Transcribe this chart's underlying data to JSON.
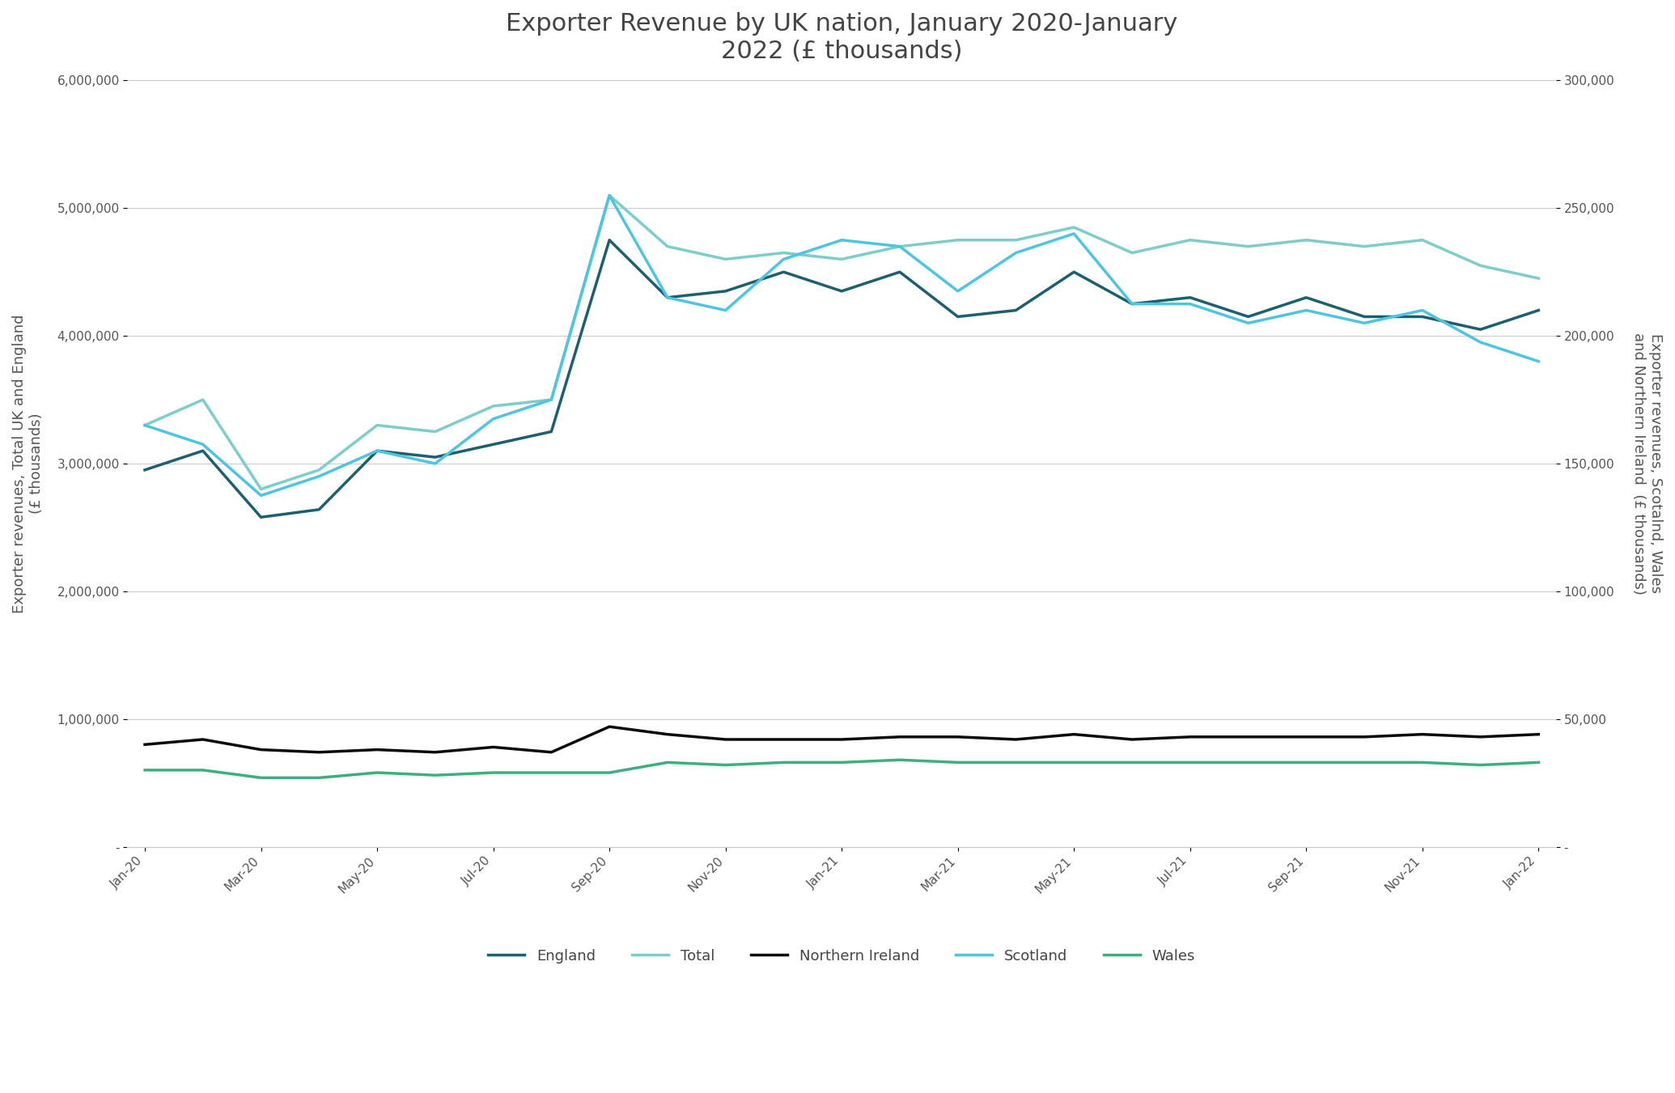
{
  "title": "Exporter Revenue by UK nation, January 2020-January\n2022 (£ thousands)",
  "x_labels": [
    "Jan-20",
    "Mar-20",
    "May-20",
    "Jul-20",
    "Sep-20",
    "Nov-20",
    "Jan-21",
    "Mar-21",
    "May-21",
    "Jul-21",
    "Sep-21",
    "Nov-21",
    "Jan-22"
  ],
  "england": [
    2950000,
    3100000,
    2580000,
    2640000,
    3100000,
    3050000,
    3150000,
    3250000,
    4750000,
    4300000,
    4350000,
    4500000,
    4350000,
    4500000,
    4150000,
    4200000,
    4500000,
    4250000,
    4300000,
    4150000,
    4300000,
    4150000,
    4150000,
    4050000,
    4200000
  ],
  "total": [
    3300000,
    3500000,
    2800000,
    2950000,
    3300000,
    3250000,
    3450000,
    3500000,
    5100000,
    4700000,
    4600000,
    4650000,
    4600000,
    4700000,
    4750000,
    4750000,
    4850000,
    4650000,
    4750000,
    4700000,
    4750000,
    4700000,
    4750000,
    4550000,
    4450000
  ],
  "scotland": [
    3300000,
    3150000,
    2750000,
    2900000,
    3100000,
    3000000,
    3350000,
    3500000,
    5100000,
    4300000,
    4200000,
    4600000,
    4750000,
    4700000,
    4350000,
    4650000,
    4800000,
    4250000,
    4250000,
    4100000,
    4200000,
    4100000,
    4200000,
    3950000,
    3800000
  ],
  "northern_ireland": [
    40000,
    42000,
    38000,
    37000,
    38000,
    37000,
    39000,
    37000,
    47000,
    44000,
    42000,
    42000,
    42000,
    43000,
    43000,
    42000,
    44000,
    42000,
    43000,
    43000,
    43000,
    43000,
    44000,
    43000,
    44000
  ],
  "wales": [
    30000,
    30000,
    27000,
    27000,
    29000,
    28000,
    29000,
    29000,
    29000,
    33000,
    32000,
    33000,
    33000,
    34000,
    33000,
    33000,
    33000,
    33000,
    33000,
    33000,
    33000,
    33000,
    33000,
    32000,
    33000
  ],
  "england_color": "#1c5f6e",
  "total_color": "#7dcdc8",
  "northern_ireland_color": "#0a0a0a",
  "scotland_color": "#4ec5e0",
  "wales_color": "#3daf7f",
  "ylabel_left": "Exporter revenues, Total UK and England\n(£ thousands)",
  "ylabel_right_plain": "Exporter revenues, Scotalnd, Wales\nand Northern Ireland  (£ thousands)",
  "ylim_left": [
    0,
    6000000
  ],
  "ylim_right": [
    0,
    300000
  ],
  "linewidth": 2.5,
  "background_color": "#ffffff",
  "legend_labels": [
    "England",
    "Total",
    "Northern Ireland",
    "Scotland",
    "Wales"
  ],
  "text_color": "#555555",
  "title_color": "#444444"
}
